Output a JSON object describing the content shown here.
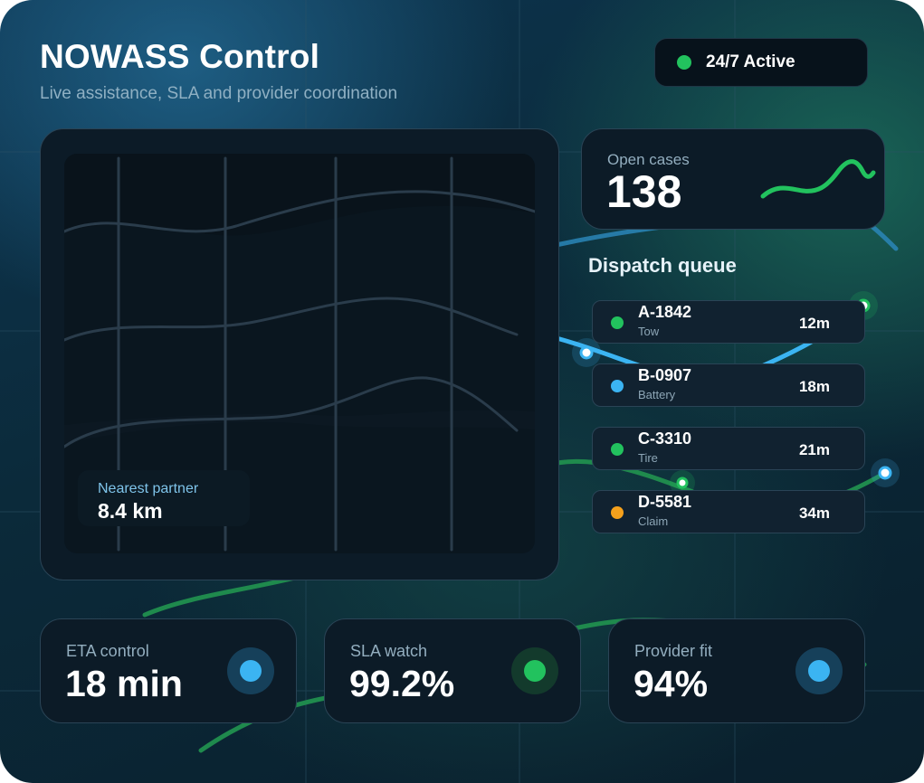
{
  "header": {
    "title": "NOWASS Control",
    "subtitle": "Live assistance, SLA and provider coordination",
    "status_label": "24/7 Active",
    "status_color": "#22c25e"
  },
  "map": {
    "nearest_label": "Nearest partner",
    "nearest_value": "8.4 km"
  },
  "open_cases": {
    "label": "Open cases",
    "value": "138",
    "trend_color": "#22c25e"
  },
  "queue": {
    "title": "Dispatch queue",
    "items": [
      {
        "id": "A-1842",
        "type": "Tow",
        "eta": "12m",
        "color": "#22c25e"
      },
      {
        "id": "B-0907",
        "type": "Battery",
        "eta": "18m",
        "color": "#3bb4f2"
      },
      {
        "id": "C-3310",
        "type": "Tire",
        "eta": "21m",
        "color": "#22c25e"
      },
      {
        "id": "D-5581",
        "type": "Claim",
        "eta": "34m",
        "color": "#f5a11c"
      }
    ]
  },
  "stats": [
    {
      "label": "ETA control",
      "value": "18 min",
      "icon": "route-indicator-icon",
      "color": "#3bb4f2"
    },
    {
      "label": "SLA watch",
      "value": "99.2%",
      "icon": "sla-indicator-icon",
      "color": "#22c25e"
    },
    {
      "label": "Provider fit",
      "value": "94%",
      "icon": "provider-indicator-icon",
      "color": "#3bb4f2"
    }
  ]
}
